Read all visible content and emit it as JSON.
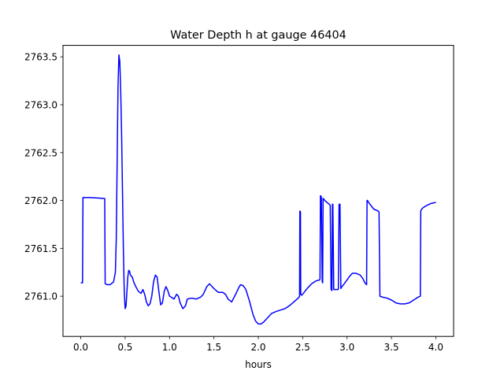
{
  "chart_data": {
    "type": "line",
    "title": "Water Depth h at gauge 46404",
    "xlabel": "hours",
    "ylabel": "",
    "xlim": [
      -0.2,
      4.2
    ],
    "ylim": [
      2760.58,
      2763.62
    ],
    "xticks": [
      0.0,
      0.5,
      1.0,
      1.5,
      2.0,
      2.5,
      3.0,
      3.5,
      4.0
    ],
    "xtick_labels": [
      "0.0",
      "0.5",
      "1.0",
      "1.5",
      "2.0",
      "2.5",
      "3.0",
      "3.5",
      "4.0"
    ],
    "yticks": [
      2761.0,
      2761.5,
      2762.0,
      2762.5,
      2763.0,
      2763.5
    ],
    "ytick_labels": [
      "2761.0",
      "2761.5",
      "2762.0",
      "2762.5",
      "2763.0",
      "2763.5"
    ],
    "grid": false,
    "series": [
      {
        "color": "#0000ff",
        "x": [
          0.0,
          0.02,
          0.025,
          0.1,
          0.2,
          0.27,
          0.275,
          0.3,
          0.33,
          0.37,
          0.39,
          0.4,
          0.41,
          0.42,
          0.43,
          0.44,
          0.45,
          0.46,
          0.47,
          0.48,
          0.49,
          0.5,
          0.51,
          0.52,
          0.53,
          0.54,
          0.55,
          0.56,
          0.57,
          0.58,
          0.59,
          0.6,
          0.62,
          0.65,
          0.68,
          0.7,
          0.72,
          0.74,
          0.76,
          0.78,
          0.8,
          0.82,
          0.84,
          0.86,
          0.88,
          0.9,
          0.92,
          0.94,
          0.96,
          0.98,
          1.0,
          1.02,
          1.05,
          1.08,
          1.1,
          1.12,
          1.15,
          1.18,
          1.2,
          1.25,
          1.3,
          1.35,
          1.38,
          1.42,
          1.45,
          1.5,
          1.55,
          1.6,
          1.63,
          1.66,
          1.7,
          1.75,
          1.78,
          1.8,
          1.83,
          1.86,
          1.9,
          1.94,
          1.97,
          2.0,
          2.03,
          2.06,
          2.1,
          2.15,
          2.2,
          2.3,
          2.35,
          2.4,
          2.45,
          2.465,
          2.468,
          2.47,
          2.475,
          2.478,
          2.49,
          2.55,
          2.6,
          2.65,
          2.69,
          2.695,
          2.7,
          2.71,
          2.72,
          2.725,
          2.73,
          2.735,
          2.74,
          2.76,
          2.8,
          2.81,
          2.82,
          2.83,
          2.835,
          2.84,
          2.85,
          2.9,
          2.902,
          2.91,
          2.92,
          2.93,
          2.935,
          2.96,
          3.0,
          3.03,
          3.06,
          3.1,
          3.15,
          3.18,
          3.2,
          3.22,
          3.225,
          3.23,
          3.25,
          3.3,
          3.35,
          3.36,
          3.37,
          3.4,
          3.45,
          3.5,
          3.55,
          3.6,
          3.65,
          3.7,
          3.75,
          3.8,
          3.825,
          3.83,
          3.835,
          3.85,
          3.9,
          3.95,
          4.0
        ],
        "y": [
          2761.14,
          2761.14,
          2762.03,
          2762.03,
          2762.025,
          2762.02,
          2761.13,
          2761.12,
          2761.12,
          2761.15,
          2761.25,
          2761.6,
          2762.4,
          2763.2,
          2763.52,
          2763.45,
          2763.15,
          2762.7,
          2762.1,
          2761.5,
          2761.05,
          2760.87,
          2760.9,
          2761.05,
          2761.2,
          2761.27,
          2761.26,
          2761.22,
          2761.21,
          2761.2,
          2761.17,
          2761.14,
          2761.1,
          2761.05,
          2761.03,
          2761.07,
          2761.02,
          2760.94,
          2760.9,
          2760.92,
          2761.0,
          2761.15,
          2761.22,
          2761.2,
          2761.05,
          2760.91,
          2760.93,
          2761.05,
          2761.1,
          2761.06,
          2761.0,
          2760.99,
          2760.97,
          2761.02,
          2761.0,
          2760.93,
          2760.87,
          2760.9,
          2760.97,
          2760.98,
          2760.97,
          2760.99,
          2761.02,
          2761.1,
          2761.13,
          2761.08,
          2761.04,
          2761.04,
          2761.02,
          2760.97,
          2760.94,
          2761.03,
          2761.09,
          2761.12,
          2761.11,
          2761.07,
          2760.95,
          2760.81,
          2760.74,
          2760.71,
          2760.71,
          2760.73,
          2760.77,
          2760.82,
          2760.84,
          2760.87,
          2760.9,
          2760.94,
          2760.98,
          2761.0,
          2761.88,
          2761.89,
          2761.88,
          2761.02,
          2761.01,
          2761.08,
          2761.13,
          2761.16,
          2761.17,
          2761.18,
          2762.05,
          2762.04,
          2761.15,
          2761.14,
          2762.02,
          2762.02,
          2762.01,
          2761.99,
          2761.96,
          2761.95,
          2761.07,
          2761.06,
          2761.96,
          2761.96,
          2761.07,
          2761.07,
          2761.08,
          2761.96,
          2761.96,
          2761.08,
          2761.09,
          2761.12,
          2761.17,
          2761.21,
          2761.24,
          2761.24,
          2761.22,
          2761.18,
          2761.14,
          2761.12,
          2762.0,
          2762.0,
          2761.97,
          2761.91,
          2761.89,
          2761.88,
          2761.0,
          2760.99,
          2760.98,
          2760.96,
          2760.93,
          2760.92,
          2760.92,
          2760.93,
          2760.96,
          2760.99,
          2761.0,
          2761.89,
          2761.9,
          2761.92,
          2761.95,
          2761.97,
          2761.98
        ]
      }
    ]
  }
}
